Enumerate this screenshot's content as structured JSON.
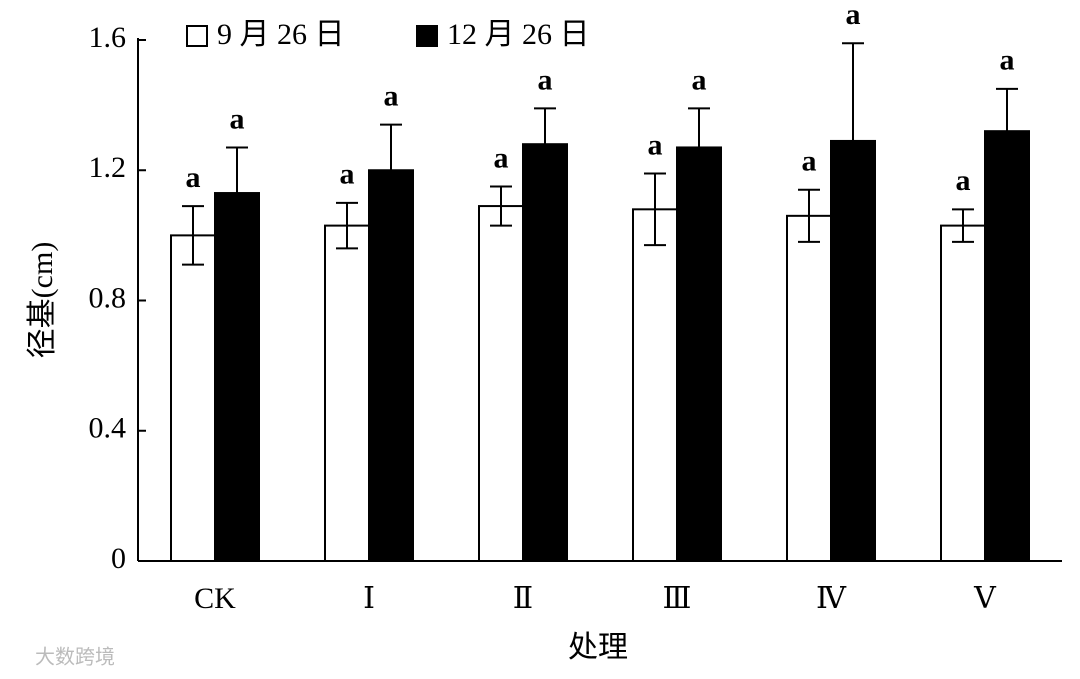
{
  "chart_data": {
    "type": "bar",
    "y_label": "径基(cm)",
    "x_label": "处理",
    "categories": [
      "CK",
      "Ⅰ",
      "Ⅱ",
      "Ⅲ",
      "Ⅳ",
      "Ⅴ"
    ],
    "series": [
      {
        "name": "9 月 26 日",
        "color": "#ffffff",
        "values": [
          1.0,
          1.03,
          1.09,
          1.08,
          1.06,
          1.03
        ],
        "errors": [
          0.09,
          0.07,
          0.06,
          0.11,
          0.08,
          0.05
        ],
        "letters": [
          "a",
          "a",
          "a",
          "a",
          "a",
          "a"
        ]
      },
      {
        "name": "12 月 26 日",
        "color": "#000000",
        "values": [
          1.13,
          1.2,
          1.28,
          1.27,
          1.29,
          1.32
        ],
        "errors": [
          0.14,
          0.14,
          0.11,
          0.12,
          0.3,
          0.13
        ],
        "letters": [
          "a",
          "a",
          "a",
          "a",
          "a",
          "a"
        ]
      }
    ],
    "ylim": [
      0,
      1.6
    ],
    "yticks": [
      0,
      {
        "value": 0.4,
        "label": "0.4"
      },
      {
        "value": 0.8,
        "label": "0.8"
      },
      {
        "value": 1.2,
        "label": "1.2"
      },
      {
        "value": 1.6,
        "label": "1.6"
      }
    ],
    "legend": "top-left",
    "watermark": "大数跨境"
  }
}
